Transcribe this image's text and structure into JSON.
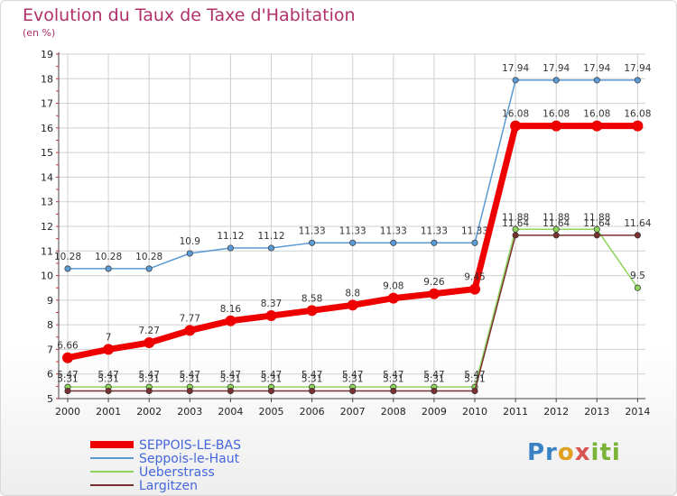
{
  "chart_data": {
    "type": "line",
    "title": "Evolution du Taux de Taxe d'Habitation",
    "unit_label": "(en %)",
    "x": [
      "2000",
      "2001",
      "2002",
      "2003",
      "2004",
      "2005",
      "2006",
      "2007",
      "2008",
      "2009",
      "2010",
      "2011",
      "2012",
      "2013",
      "2014"
    ],
    "ylim": [
      5,
      19
    ],
    "yticks": [
      5,
      6,
      7,
      8,
      9,
      10,
      11,
      12,
      13,
      14,
      15,
      16,
      17,
      18,
      19
    ],
    "grid": true,
    "legend_position": "bottom-left",
    "series": [
      {
        "name": "SEPPOIS-LE-BAS",
        "color": "#ee0000",
        "emphasis": true,
        "values": [
          6.66,
          7,
          7.27,
          7.77,
          8.16,
          8.37,
          8.58,
          8.8,
          9.08,
          9.26,
          9.45,
          16.08,
          16.08,
          16.08,
          16.08
        ],
        "labels": [
          "6.66",
          "7",
          "7.27",
          "7.77",
          "8.16",
          "8.37",
          "8.58",
          "8.8",
          "9.08",
          "9.26",
          "9.45",
          "16.08",
          "16.08",
          "16.08",
          "16.08"
        ]
      },
      {
        "name": "Seppois-le-Haut",
        "color": "#5b9bd5",
        "emphasis": false,
        "values": [
          10.28,
          10.28,
          10.28,
          10.9,
          11.12,
          11.12,
          11.33,
          11.33,
          11.33,
          11.33,
          11.33,
          17.94,
          17.94,
          17.94,
          17.94
        ],
        "labels": [
          "10.28",
          "10.28",
          "10.28",
          "10.9",
          "11.12",
          "11.12",
          "11.33",
          "11.33",
          "11.33",
          "11.33",
          "11.33",
          "17.94",
          "17.94",
          "17.94",
          "17.94"
        ]
      },
      {
        "name": "Ueberstrass",
        "color": "#8ed45a",
        "emphasis": false,
        "values": [
          5.47,
          5.47,
          5.47,
          5.47,
          5.47,
          5.47,
          5.47,
          5.47,
          5.47,
          5.47,
          5.47,
          11.88,
          11.88,
          11.88,
          9.5
        ],
        "labels": [
          "5.47",
          "5.47",
          "5.47",
          "5.47",
          "5.47",
          "5.47",
          "5.47",
          "5.47",
          "5.47",
          "5.47",
          "5.47",
          "11.88",
          "11.88",
          "11.88",
          "9.5"
        ]
      },
      {
        "name": "Largitzen",
        "color": "#7a3030",
        "emphasis": false,
        "values": [
          5.31,
          5.31,
          5.31,
          5.31,
          5.31,
          5.31,
          5.31,
          5.31,
          5.31,
          5.31,
          5.31,
          11.64,
          11.64,
          11.64,
          11.64
        ],
        "labels": [
          "5.31",
          "5.31",
          "5.31",
          "5.31",
          "5.31",
          "5.31",
          "5.31",
          "5.31",
          "5.31",
          "5.31",
          "5.31",
          "11.64",
          "11.64",
          "11.64",
          "11.64"
        ]
      }
    ]
  },
  "logo": {
    "p1": "Pr",
    "p2": "o",
    "p3": "x",
    "p4": "iti"
  }
}
